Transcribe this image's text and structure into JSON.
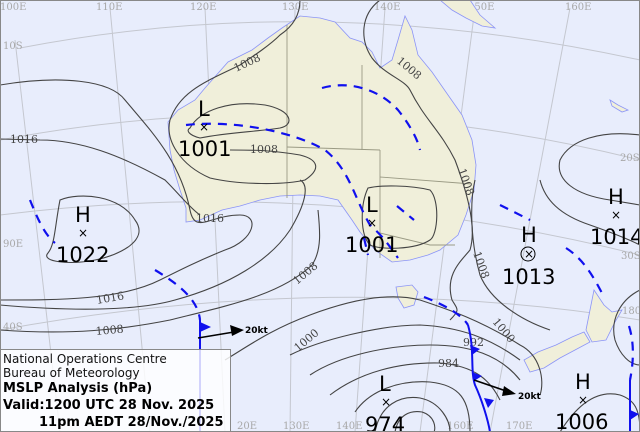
{
  "info": {
    "org": "National Operations Centre",
    "agency": "Bureau of Meteorology",
    "title": "MSLP Analysis (hPa)",
    "valid_utc": "Valid:1200 UTC 28 Nov. 2025",
    "valid_local": "11pm AEDT 28/Nov./2025"
  },
  "grid_labels": {
    "top": [
      "100E",
      "110E",
      "120E",
      "130E",
      "140E",
      "150E",
      "160E"
    ],
    "left": [
      "10S",
      "1016",
      "90E",
      "40S"
    ],
    "right": [
      "20S",
      "30S",
      "180"
    ],
    "bottom": [
      "20E",
      "130E",
      "140E",
      "160E",
      "170E"
    ]
  },
  "pressure_systems": [
    {
      "type": "L",
      "value": "1001",
      "marker": "cross"
    },
    {
      "type": "L",
      "value": "1001",
      "marker": "cross"
    },
    {
      "type": "H",
      "value": "1022",
      "marker": "cross"
    },
    {
      "type": "H",
      "value": "1013",
      "marker": "circled-cross"
    },
    {
      "type": "H",
      "value": "1014",
      "marker": "cross"
    },
    {
      "type": "L",
      "value": "974",
      "marker": "cross"
    },
    {
      "type": "H",
      "value": "1006",
      "marker": "cross"
    }
  ],
  "isobar_labels": [
    "1008",
    "1008",
    "1008",
    "1016",
    "1016",
    "1008",
    "1000",
    "1008",
    "1000",
    "992",
    "984",
    "1008",
    "1008",
    "1016"
  ],
  "wind_labels": [
    "20kt",
    "20kt"
  ],
  "colors": {
    "ocean": "#e8edfc",
    "land": "#f0efda",
    "coast": "#8b94f7",
    "isobar": "#444444",
    "front": "#1010ee"
  }
}
